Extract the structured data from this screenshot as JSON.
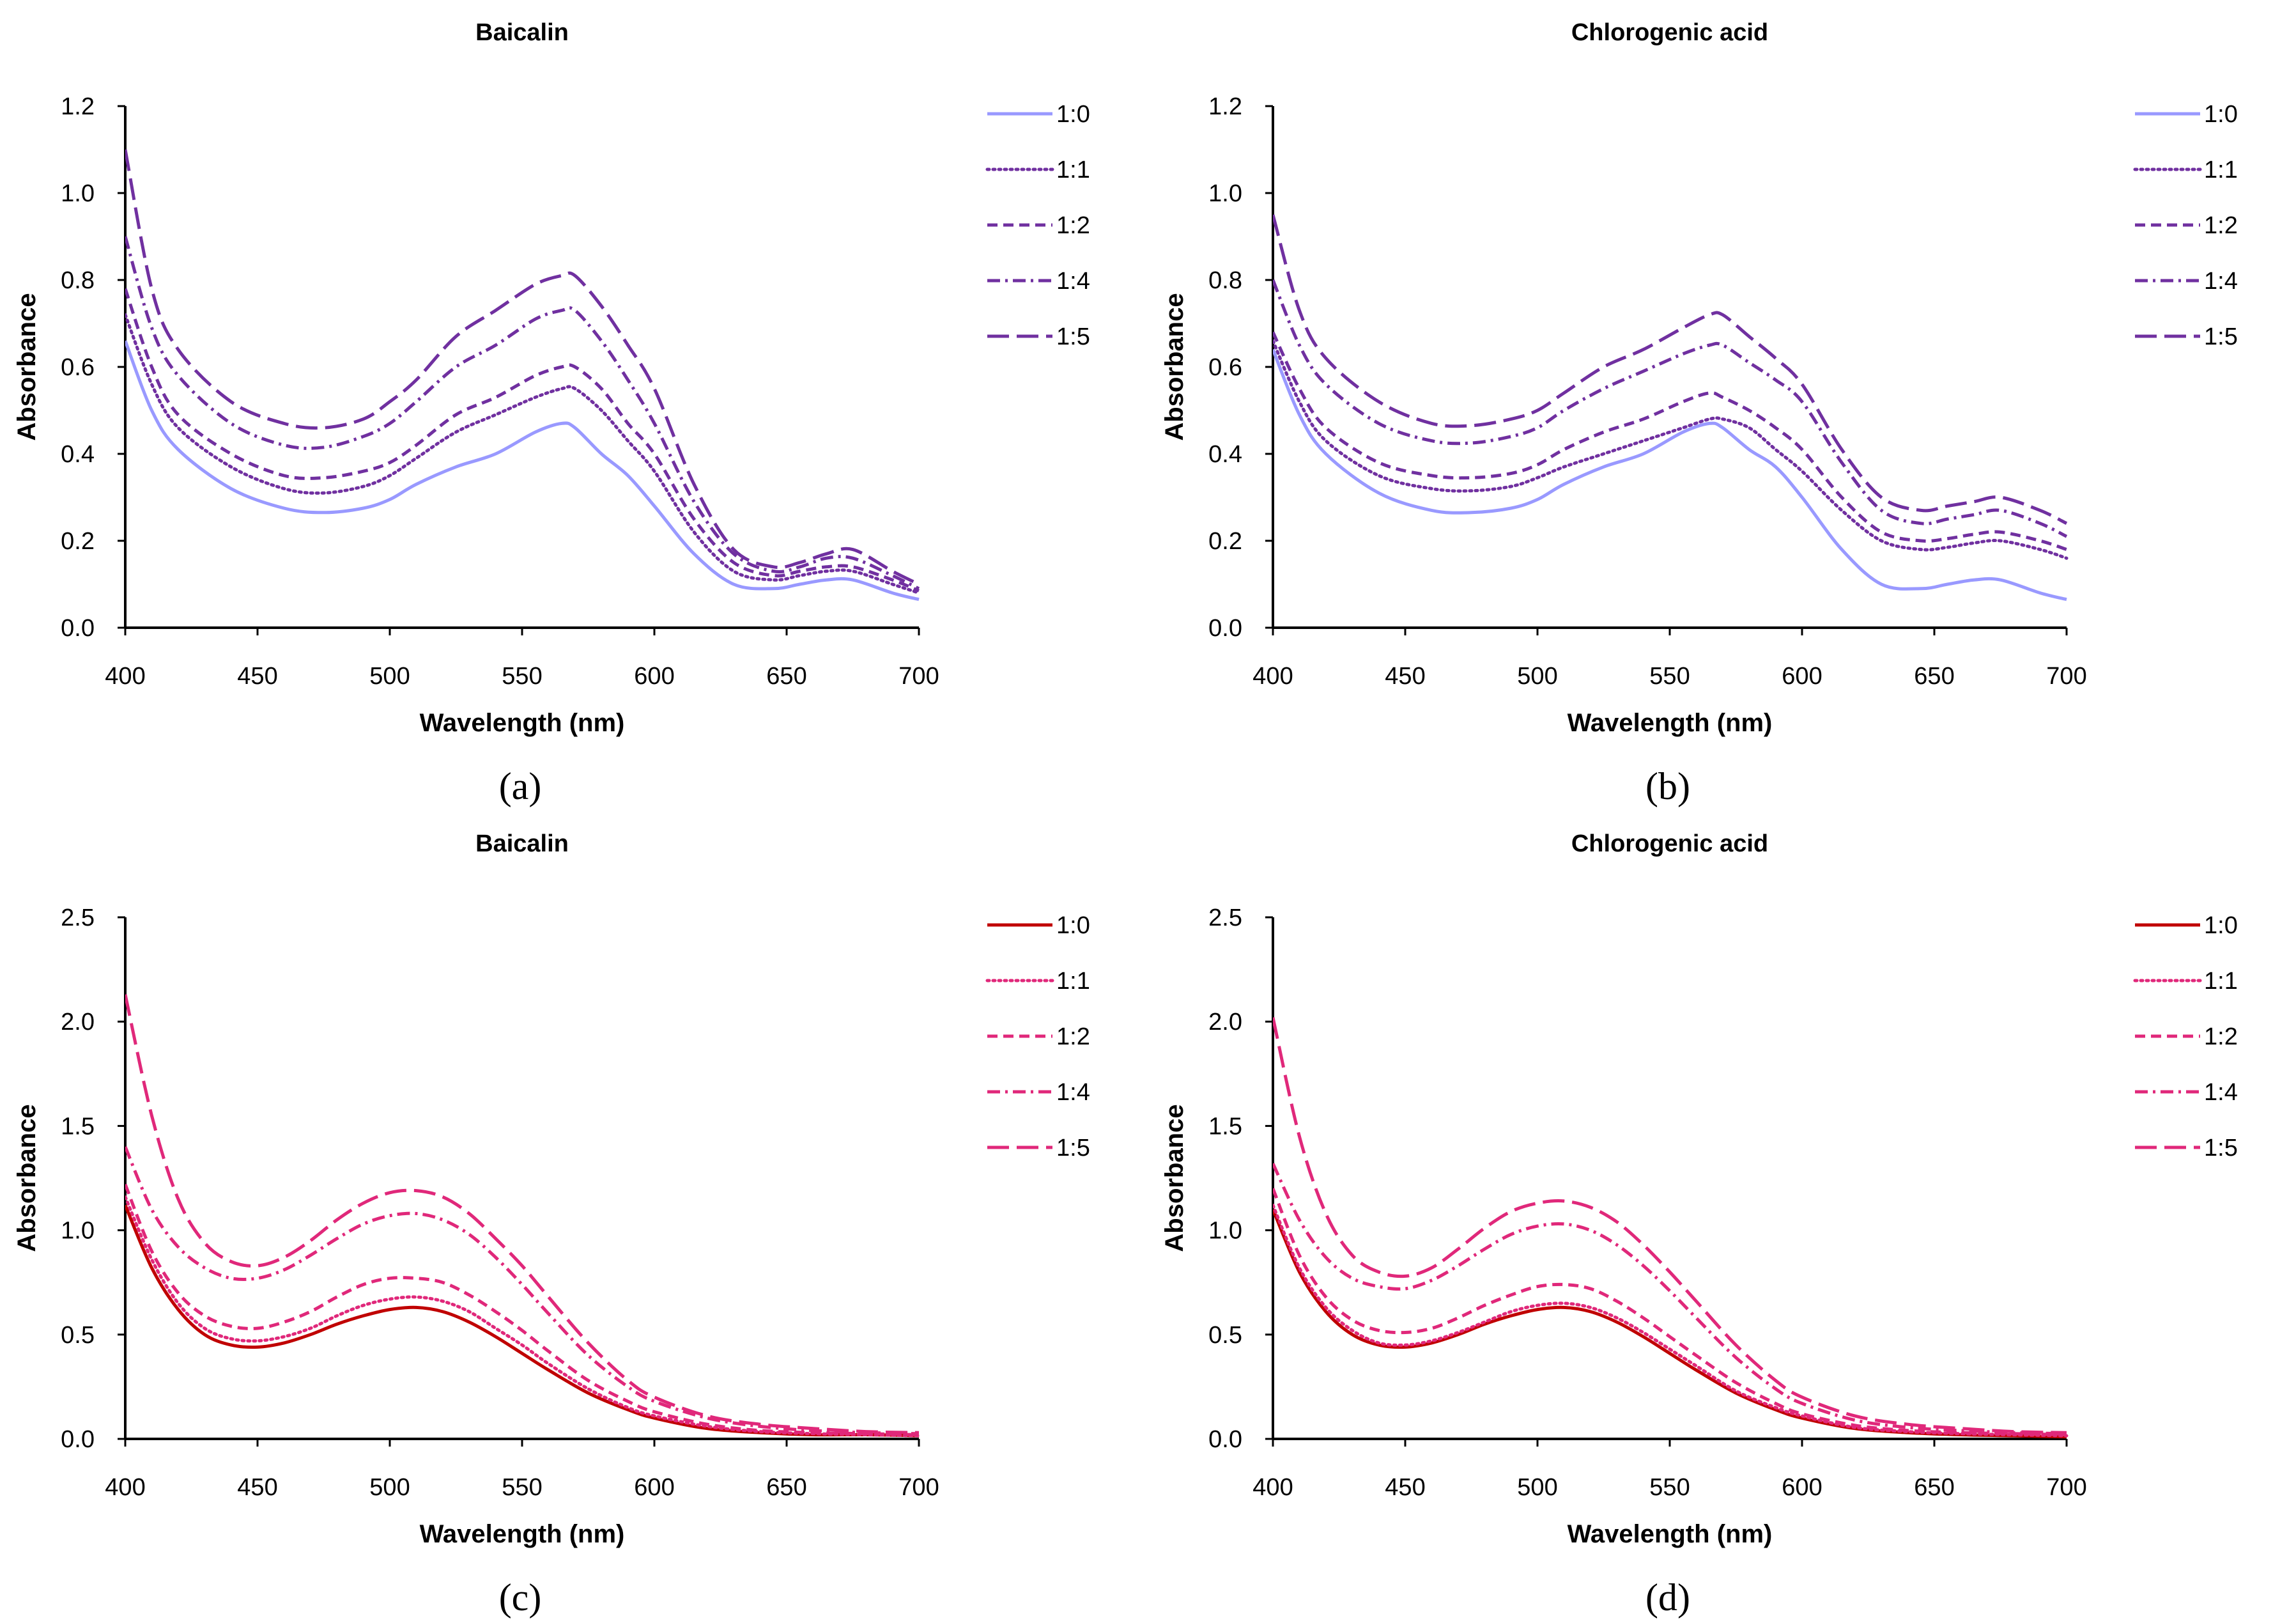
{
  "chart_data": [
    {
      "panel_label": "(a)",
      "type": "line",
      "title": "Baicalin",
      "xlabel": "Wavelength (nm)",
      "ylabel": "Absorbance",
      "xlim": [
        400,
        700
      ],
      "ylim": [
        0,
        1.2
      ],
      "xticks": [
        400,
        450,
        500,
        550,
        600,
        650,
        700
      ],
      "yticks": [
        0.0,
        0.2,
        0.4,
        0.6,
        0.8,
        1.0,
        1.2
      ],
      "ytick_labels": [
        "0.0",
        "0.2",
        "0.4",
        "0.6",
        "0.8",
        "1.0",
        "1.2"
      ],
      "legend_position": "right",
      "x": [
        400,
        410,
        420,
        440,
        460,
        475,
        490,
        500,
        510,
        525,
        540,
        555,
        565,
        570,
        580,
        590,
        600,
        615,
        630,
        645,
        655,
        665,
        675,
        690,
        700
      ],
      "series": [
        {
          "name": "1:0",
          "color": "#9999ff",
          "style": "solid",
          "values": [
            0.66,
            0.5,
            0.41,
            0.32,
            0.275,
            0.265,
            0.275,
            0.295,
            0.33,
            0.37,
            0.4,
            0.45,
            0.47,
            0.46,
            0.4,
            0.35,
            0.28,
            0.17,
            0.1,
            0.09,
            0.1,
            0.11,
            0.11,
            0.08,
            0.065
          ]
        },
        {
          "name": "1:1",
          "color": "#7030a0",
          "style": "dotted",
          "values": [
            0.72,
            0.56,
            0.46,
            0.37,
            0.32,
            0.31,
            0.325,
            0.35,
            0.39,
            0.45,
            0.49,
            0.53,
            0.55,
            0.55,
            0.5,
            0.43,
            0.36,
            0.22,
            0.13,
            0.11,
            0.12,
            0.13,
            0.13,
            0.1,
            0.08
          ]
        },
        {
          "name": "1:2",
          "color": "#7030a0",
          "style": "dashed",
          "values": [
            0.78,
            0.6,
            0.49,
            0.4,
            0.35,
            0.345,
            0.36,
            0.38,
            0.42,
            0.49,
            0.53,
            0.58,
            0.6,
            0.6,
            0.55,
            0.47,
            0.4,
            0.25,
            0.15,
            0.12,
            0.13,
            0.14,
            0.14,
            0.11,
            0.085
          ]
        },
        {
          "name": "1:4",
          "color": "#7030a0",
          "style": "dashdot",
          "values": [
            0.9,
            0.69,
            0.58,
            0.47,
            0.42,
            0.415,
            0.44,
            0.47,
            0.52,
            0.6,
            0.65,
            0.71,
            0.73,
            0.73,
            0.66,
            0.57,
            0.47,
            0.29,
            0.17,
            0.13,
            0.14,
            0.16,
            0.16,
            0.12,
            0.09
          ]
        },
        {
          "name": "1:5",
          "color": "#7030a0",
          "style": "longdash",
          "values": [
            1.1,
            0.78,
            0.64,
            0.52,
            0.47,
            0.46,
            0.48,
            0.52,
            0.57,
            0.67,
            0.73,
            0.79,
            0.81,
            0.81,
            0.74,
            0.65,
            0.55,
            0.33,
            0.18,
            0.14,
            0.15,
            0.17,
            0.18,
            0.13,
            0.1
          ]
        }
      ]
    },
    {
      "panel_label": "(b)",
      "type": "line",
      "title": "Chlorogenic acid",
      "xlabel": "Wavelength (nm)",
      "ylabel": "Absorbance",
      "xlim": [
        400,
        700
      ],
      "ylim": [
        0,
        1.2
      ],
      "xticks": [
        400,
        450,
        500,
        550,
        600,
        650,
        700
      ],
      "yticks": [
        0.0,
        0.2,
        0.4,
        0.6,
        0.8,
        1.0,
        1.2
      ],
      "ytick_labels": [
        "0.0",
        "0.2",
        "0.4",
        "0.6",
        "0.8",
        "1.0",
        "1.2"
      ],
      "legend_position": "right",
      "x": [
        400,
        410,
        420,
        440,
        460,
        475,
        490,
        500,
        510,
        525,
        540,
        555,
        565,
        570,
        580,
        590,
        600,
        615,
        630,
        645,
        655,
        665,
        675,
        690,
        700
      ],
      "series": [
        {
          "name": "1:0",
          "color": "#9999ff",
          "style": "solid",
          "values": [
            0.64,
            0.49,
            0.4,
            0.31,
            0.27,
            0.265,
            0.275,
            0.295,
            0.33,
            0.37,
            0.4,
            0.45,
            0.47,
            0.46,
            0.41,
            0.37,
            0.3,
            0.18,
            0.1,
            0.09,
            0.1,
            0.11,
            0.11,
            0.08,
            0.065
          ]
        },
        {
          "name": "1:1",
          "color": "#7030a0",
          "style": "dotted",
          "values": [
            0.66,
            0.52,
            0.43,
            0.35,
            0.32,
            0.315,
            0.325,
            0.345,
            0.37,
            0.4,
            0.43,
            0.46,
            0.48,
            0.48,
            0.46,
            0.41,
            0.36,
            0.27,
            0.2,
            0.18,
            0.185,
            0.195,
            0.2,
            0.18,
            0.16
          ]
        },
        {
          "name": "1:2",
          "color": "#7030a0",
          "style": "dashed",
          "values": [
            0.68,
            0.55,
            0.46,
            0.38,
            0.35,
            0.345,
            0.355,
            0.375,
            0.41,
            0.45,
            0.48,
            0.52,
            0.54,
            0.53,
            0.5,
            0.46,
            0.41,
            0.3,
            0.22,
            0.2,
            0.205,
            0.215,
            0.22,
            0.2,
            0.18
          ]
        },
        {
          "name": "1:4",
          "color": "#7030a0",
          "style": "dashdot",
          "values": [
            0.8,
            0.65,
            0.56,
            0.47,
            0.43,
            0.425,
            0.44,
            0.46,
            0.5,
            0.55,
            0.59,
            0.63,
            0.65,
            0.65,
            0.61,
            0.57,
            0.52,
            0.38,
            0.27,
            0.24,
            0.25,
            0.26,
            0.27,
            0.24,
            0.21
          ]
        },
        {
          "name": "1:5",
          "color": "#7030a0",
          "style": "longdash",
          "values": [
            0.95,
            0.73,
            0.62,
            0.52,
            0.47,
            0.465,
            0.48,
            0.5,
            0.54,
            0.6,
            0.64,
            0.69,
            0.72,
            0.72,
            0.67,
            0.62,
            0.56,
            0.41,
            0.3,
            0.27,
            0.28,
            0.29,
            0.3,
            0.27,
            0.24
          ]
        }
      ]
    },
    {
      "panel_label": "(c)",
      "type": "line",
      "title": "Baicalin",
      "xlabel": "Wavelength (nm)",
      "ylabel": "Absorbance",
      "xlim": [
        400,
        700
      ],
      "ylim": [
        0,
        2.5
      ],
      "xticks": [
        400,
        450,
        500,
        550,
        600,
        650,
        700
      ],
      "yticks": [
        0.0,
        0.5,
        1.0,
        1.5,
        2.0,
        2.5
      ],
      "ytick_labels": [
        "0.0",
        "0.5",
        "1.0",
        "1.5",
        "2.0",
        "2.5"
      ],
      "legend_position": "right",
      "x": [
        400,
        410,
        420,
        430,
        440,
        450,
        460,
        470,
        480,
        490,
        500,
        510,
        520,
        530,
        540,
        550,
        560,
        575,
        590,
        600,
        620,
        640,
        660,
        680,
        700
      ],
      "series": [
        {
          "name": "1:0",
          "color": "#c00000",
          "style": "solid",
          "values": [
            1.12,
            0.82,
            0.62,
            0.5,
            0.45,
            0.44,
            0.46,
            0.5,
            0.55,
            0.59,
            0.62,
            0.63,
            0.61,
            0.56,
            0.49,
            0.41,
            0.33,
            0.22,
            0.14,
            0.1,
            0.05,
            0.03,
            0.02,
            0.02,
            0.015
          ]
        },
        {
          "name": "1:1",
          "color": "#e0287a",
          "style": "dotted",
          "values": [
            1.16,
            0.86,
            0.65,
            0.53,
            0.48,
            0.47,
            0.49,
            0.53,
            0.59,
            0.64,
            0.67,
            0.68,
            0.66,
            0.61,
            0.53,
            0.45,
            0.36,
            0.24,
            0.15,
            0.11,
            0.06,
            0.035,
            0.025,
            0.02,
            0.015
          ]
        },
        {
          "name": "1:2",
          "color": "#e0287a",
          "style": "dashed",
          "values": [
            1.22,
            0.9,
            0.7,
            0.59,
            0.54,
            0.53,
            0.56,
            0.61,
            0.68,
            0.74,
            0.77,
            0.77,
            0.75,
            0.69,
            0.61,
            0.52,
            0.42,
            0.28,
            0.18,
            0.13,
            0.07,
            0.04,
            0.03,
            0.025,
            0.02
          ]
        },
        {
          "name": "1:4",
          "color": "#e0287a",
          "style": "dashdot",
          "values": [
            1.4,
            1.1,
            0.92,
            0.82,
            0.77,
            0.77,
            0.81,
            0.88,
            0.96,
            1.03,
            1.07,
            1.08,
            1.05,
            0.98,
            0.87,
            0.74,
            0.6,
            0.4,
            0.25,
            0.18,
            0.1,
            0.06,
            0.04,
            0.03,
            0.025
          ]
        },
        {
          "name": "1:5",
          "color": "#e0287a",
          "style": "longdash",
          "values": [
            2.13,
            1.55,
            1.15,
            0.94,
            0.85,
            0.83,
            0.87,
            0.95,
            1.05,
            1.13,
            1.18,
            1.19,
            1.16,
            1.08,
            0.96,
            0.83,
            0.68,
            0.46,
            0.28,
            0.2,
            0.11,
            0.07,
            0.05,
            0.035,
            0.03
          ]
        }
      ]
    },
    {
      "panel_label": "(d)",
      "type": "line",
      "title": "Chlorogenic acid",
      "xlabel": "Wavelength (nm)",
      "ylabel": "Absorbance",
      "xlim": [
        400,
        700
      ],
      "ylim": [
        0,
        2.5
      ],
      "xticks": [
        400,
        450,
        500,
        550,
        600,
        650,
        700
      ],
      "yticks": [
        0.0,
        0.5,
        1.0,
        1.5,
        2.0,
        2.5
      ],
      "ytick_labels": [
        "0.0",
        "0.5",
        "1.0",
        "1.5",
        "2.0",
        "2.5"
      ],
      "legend_position": "right",
      "x": [
        400,
        410,
        420,
        430,
        440,
        450,
        460,
        470,
        480,
        490,
        500,
        510,
        520,
        530,
        540,
        550,
        560,
        575,
        590,
        600,
        620,
        640,
        660,
        680,
        700
      ],
      "series": [
        {
          "name": "1:0",
          "color": "#c00000",
          "style": "solid",
          "values": [
            1.1,
            0.8,
            0.61,
            0.5,
            0.45,
            0.44,
            0.46,
            0.5,
            0.55,
            0.59,
            0.62,
            0.63,
            0.61,
            0.56,
            0.49,
            0.41,
            0.33,
            0.22,
            0.14,
            0.1,
            0.05,
            0.03,
            0.02,
            0.015,
            0.01
          ]
        },
        {
          "name": "1:1",
          "color": "#e0287a",
          "style": "dotted",
          "values": [
            1.12,
            0.82,
            0.63,
            0.52,
            0.46,
            0.45,
            0.47,
            0.51,
            0.56,
            0.61,
            0.64,
            0.65,
            0.63,
            0.58,
            0.51,
            0.43,
            0.35,
            0.23,
            0.15,
            0.11,
            0.055,
            0.035,
            0.025,
            0.02,
            0.015
          ]
        },
        {
          "name": "1:2",
          "color": "#e0287a",
          "style": "dashed",
          "values": [
            1.2,
            0.88,
            0.68,
            0.57,
            0.52,
            0.51,
            0.53,
            0.58,
            0.64,
            0.69,
            0.73,
            0.74,
            0.72,
            0.66,
            0.58,
            0.49,
            0.4,
            0.27,
            0.17,
            0.12,
            0.065,
            0.04,
            0.03,
            0.025,
            0.02
          ]
        },
        {
          "name": "1:4",
          "color": "#e0287a",
          "style": "dashdot",
          "values": [
            1.32,
            1.05,
            0.87,
            0.77,
            0.73,
            0.72,
            0.76,
            0.83,
            0.91,
            0.98,
            1.02,
            1.03,
            1.0,
            0.93,
            0.83,
            0.71,
            0.58,
            0.39,
            0.24,
            0.17,
            0.09,
            0.055,
            0.04,
            0.03,
            0.025
          ]
        },
        {
          "name": "1:5",
          "color": "#e0287a",
          "style": "longdash",
          "values": [
            2.02,
            1.45,
            1.08,
            0.88,
            0.8,
            0.78,
            0.82,
            0.91,
            1.01,
            1.09,
            1.13,
            1.14,
            1.11,
            1.04,
            0.93,
            0.8,
            0.66,
            0.45,
            0.28,
            0.2,
            0.11,
            0.07,
            0.05,
            0.035,
            0.03
          ]
        }
      ]
    }
  ]
}
